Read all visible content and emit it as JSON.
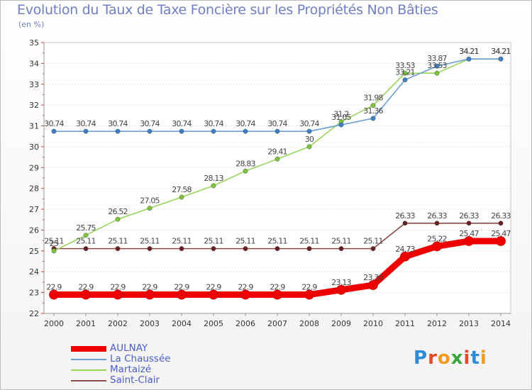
{
  "title": "Evolution du Taux de Taxe Foncière sur les Propriétés Non Bâties",
  "unit": "(en %)",
  "logo": {
    "text": "Proxiti",
    "colors": [
      "#2e8bd6",
      "#e24a2a",
      "#f39a1e",
      "#3aa53a",
      "#e24a2a",
      "#2e8bd6",
      "#f39a1e"
    ]
  },
  "chart_data": {
    "type": "line",
    "title": "Evolution du Taux de Taxe Foncière sur les Propriétés Non Bâties",
    "ylabel": "(en %)",
    "xlabel": "",
    "ylim": [
      22,
      35
    ],
    "yticks": [
      22,
      23,
      24,
      25,
      26,
      27,
      28,
      29,
      30,
      31,
      32,
      33,
      34,
      35
    ],
    "x": [
      "2000",
      "2001",
      "2002",
      "2003",
      "2004",
      "2005",
      "2006",
      "2007",
      "2008",
      "2009",
      "2010",
      "2011",
      "2012",
      "2013",
      "2014"
    ],
    "grid": "horizontal-dotted",
    "series": [
      {
        "name": "AULNAY",
        "color": "#ee0000",
        "marker": "#ee0000",
        "width": "thick",
        "values": [
          22.9,
          22.9,
          22.9,
          22.9,
          22.9,
          22.9,
          22.9,
          22.9,
          22.9,
          23.13,
          23.36,
          24.73,
          25.22,
          25.47,
          25.47
        ],
        "labels": [
          "22.9",
          "22.9",
          "22.9",
          "22.9",
          "22.9",
          "22.9",
          "22.9",
          "22.9",
          "22.9",
          "23.13",
          "23.36",
          "24.73",
          "25.22",
          "25.47",
          "25.47"
        ]
      },
      {
        "name": "La Chaussée",
        "color": "#6b9fd4",
        "marker": "#3c7fc4",
        "width": "thin",
        "values": [
          30.74,
          30.74,
          30.74,
          30.74,
          30.74,
          30.74,
          30.74,
          30.74,
          30.74,
          31.05,
          31.36,
          33.21,
          33.87,
          34.21,
          34.21
        ],
        "labels": [
          "30.74",
          "30.74",
          "30.74",
          "30.74",
          "30.74",
          "30.74",
          "30.74",
          "30.74",
          "30.74",
          "31.05",
          "31.36",
          "33.21",
          "33.87",
          "34.21",
          "34.21"
        ]
      },
      {
        "name": "Martaizé",
        "color": "#99d45a",
        "marker": "#7cc43c",
        "width": "thin",
        "values": [
          25,
          25.75,
          26.52,
          27.05,
          27.58,
          28.13,
          28.83,
          29.41,
          30,
          31.2,
          31.98,
          33.53,
          33.53,
          34.21,
          34.21
        ],
        "labels": [
          "25",
          "25.75",
          "26.52",
          "27.05",
          "27.58",
          "28.13",
          "28.83",
          "29.41",
          "30",
          "31.2",
          "31.98",
          "33.53",
          "33.53",
          "34.21",
          "34.21"
        ]
      },
      {
        "name": "Saint-Clair",
        "color": "#8b4a4a",
        "marker": "#6b2020",
        "width": "thin",
        "values": [
          25.11,
          25.11,
          25.11,
          25.11,
          25.11,
          25.11,
          25.11,
          25.11,
          25.11,
          25.11,
          25.11,
          26.33,
          26.33,
          26.33,
          26.33
        ],
        "labels": [
          "25.11",
          "25.11",
          "25.11",
          "25.11",
          "25.11",
          "25.11",
          "25.11",
          "25.11",
          "25.11",
          "25.11",
          "25.11",
          "26.33",
          "26.33",
          "26.33",
          "26.33"
        ]
      }
    ],
    "legend": "bottom-left"
  }
}
